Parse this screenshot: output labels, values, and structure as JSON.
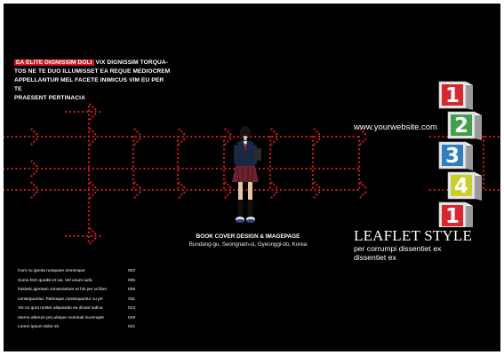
{
  "intro": {
    "highlight": "EA ELITE DIGNISSIM DOLI",
    "line1_rest": " VIX DIGNISSIM TORQUA-",
    "line2": "TOS NE TE DUO ILLUMISSET EA REQUE MEDIOCREM",
    "line3": "APPELLANTUR MEL FACETE INIMICUS VIM EU PER TE",
    "line4": "PRAESENT PERTINACIA"
  },
  "website": "www.yourwebsite.com",
  "caption": {
    "title": "BOOK COVER DESIGN & IMAGEPAGE",
    "address": "Bundang-gu, Seongnam-si, Gyeonggi-do, Korea"
  },
  "leaflet": {
    "title": "LEAFLET STYLE",
    "sub1": "per corrumpi dissentiet ex",
    "sub2": "dissentiet ex"
  },
  "toc": [
    {
      "text": "Cum cu ignota nusquam omnesque",
      "page": "003"
    },
    {
      "text": "Sumo ferri quodsi et ius. Vel unum iudic",
      "page": "005"
    },
    {
      "text": "fuissetc,ignotam consectetuer at his per ut liber",
      "page": "009"
    },
    {
      "text": "consequuntur. Patrioque consequuntur cu pri",
      "page": "011"
    },
    {
      "text": "Vis no quot noster aliquando ea dicant iudica",
      "page": "013"
    },
    {
      "text": "eterno alterum pro,ubique nominati incorrupte",
      "page": "018"
    },
    {
      "text": "Lorem ipsum dolor sit",
      "page": "021"
    }
  ],
  "cubes": [
    {
      "digit": "1",
      "color": "#d7262e"
    },
    {
      "digit": "2",
      "color": "#3fa04a"
    },
    {
      "digit": "3",
      "color": "#2f7fc0"
    },
    {
      "digit": "4",
      "color": "#c9cf2b"
    },
    {
      "digit": "1",
      "color": "#d7262e"
    }
  ],
  "colors": {
    "background": "#000000",
    "accent": "#d7191f",
    "dots": "#d41a22"
  }
}
